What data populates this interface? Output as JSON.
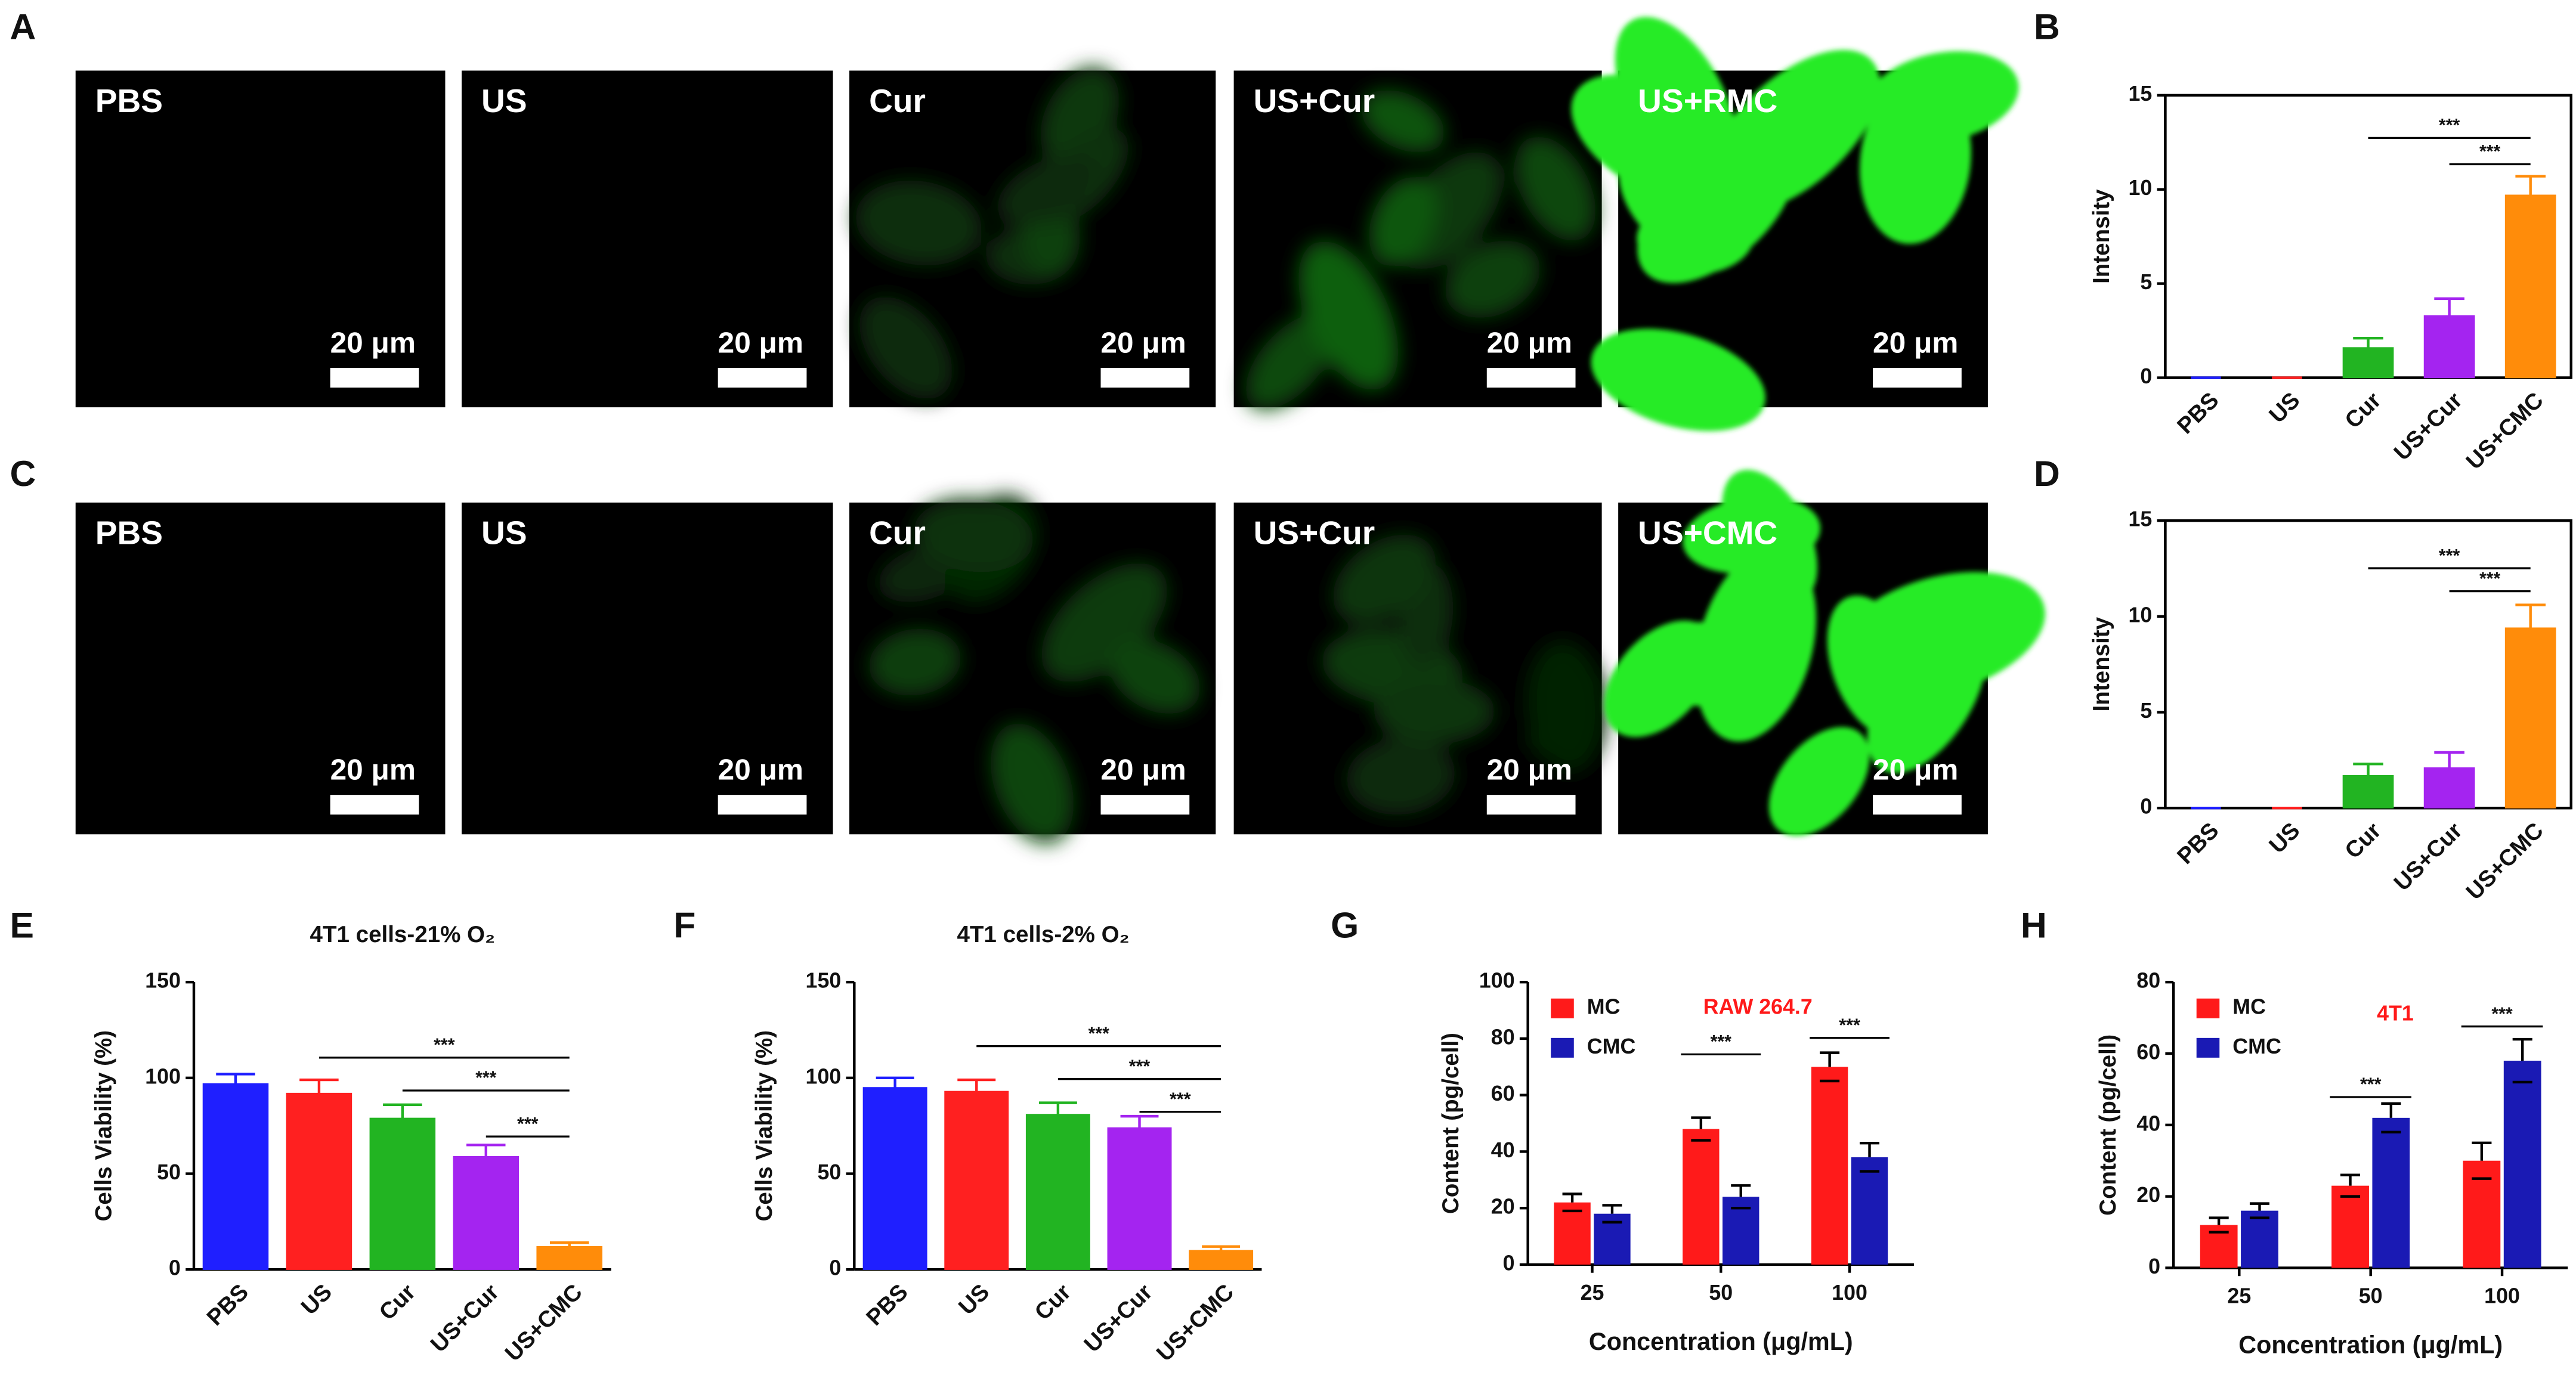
{
  "image_panels": [
    {
      "label": "A",
      "images": [
        "PBS",
        "US",
        "Cur",
        "US+Cur",
        "US+RMC"
      ],
      "scale_bar": "20 μm"
    },
    {
      "label": "C",
      "images": [
        "PBS",
        "US",
        "Cur",
        "US+Cur",
        "US+CMC"
      ],
      "scale_bar": "20 μm"
    }
  ],
  "chart_data": [
    {
      "type": "bar",
      "panel": "B",
      "y_label": "Intensity",
      "categories": [
        "PBS",
        "US",
        "Cur",
        "US+Cur",
        "US+CMC"
      ],
      "values": [
        0,
        0,
        1.6,
        3.3,
        9.7
      ],
      "errors": [
        0,
        0,
        0.5,
        0.9,
        1.0
      ],
      "colors": [
        "#1f1fff",
        "#ff2020",
        "#22b422",
        "#a424f0",
        "#ff8c0a"
      ],
      "ylim": [
        0,
        15
      ],
      "yticks": [
        0,
        5,
        10,
        15
      ],
      "significance": [
        "***",
        "***"
      ]
    },
    {
      "type": "bar",
      "panel": "D",
      "y_label": "Intensity",
      "categories": [
        "PBS",
        "US",
        "Cur",
        "US+Cur",
        "US+CMC"
      ],
      "values": [
        0,
        0,
        1.7,
        2.1,
        9.4
      ],
      "errors": [
        0,
        0,
        0.6,
        0.8,
        1.2
      ],
      "colors": [
        "#1f1fff",
        "#ff2020",
        "#22b422",
        "#a424f0",
        "#ff8c0a"
      ],
      "ylim": [
        0,
        15
      ],
      "yticks": [
        0,
        5,
        10,
        15
      ],
      "significance": [
        "***",
        "***"
      ]
    },
    {
      "type": "bar",
      "panel": "E",
      "title": "4T1 cells-21% O₂",
      "y_label": "Cells Viability (%)",
      "categories": [
        "PBS",
        "US",
        "Cur",
        "US+Cur",
        "US+CMC"
      ],
      "values": [
        97,
        92,
        79,
        59,
        12
      ],
      "errors": [
        5,
        7,
        7,
        6,
        2
      ],
      "colors": [
        "#1f1fff",
        "#ff2020",
        "#22b422",
        "#a424f0",
        "#ff8c0a"
      ],
      "ylim": [
        0,
        150
      ],
      "yticks": [
        0,
        50,
        100,
        150
      ],
      "significance": [
        "***",
        "***",
        "***"
      ]
    },
    {
      "type": "bar",
      "panel": "F",
      "title": "4T1 cells-2% O₂",
      "y_label": "Cells Viability (%)",
      "categories": [
        "PBS",
        "US",
        "Cur",
        "US+Cur",
        "US+CMC"
      ],
      "values": [
        95,
        93,
        81,
        74,
        10
      ],
      "errors": [
        5,
        6,
        6,
        6,
        2
      ],
      "colors": [
        "#1f1fff",
        "#ff2020",
        "#22b422",
        "#a424f0",
        "#ff8c0a"
      ],
      "ylim": [
        0,
        150
      ],
      "yticks": [
        0,
        50,
        100,
        150
      ],
      "significance": [
        "***",
        "***",
        "***"
      ]
    },
    {
      "type": "bar",
      "panel": "G",
      "annotation": "RAW 264.7",
      "x_label": "Concentration (μg/mL)",
      "y_label": "Content (pg/cell)",
      "categories": [
        "25",
        "50",
        "100"
      ],
      "error_color": "#000000",
      "legend": "upper left",
      "series": [
        {
          "name": "MC",
          "color": "#ff1a1a",
          "values": [
            22,
            48,
            70
          ],
          "errors": [
            3,
            4,
            5
          ]
        },
        {
          "name": "CMC",
          "color": "#1a1ab4",
          "values": [
            18,
            24,
            38
          ],
          "errors": [
            3,
            4,
            5
          ]
        }
      ],
      "ylim": [
        0,
        100
      ],
      "yticks": [
        0,
        20,
        40,
        60,
        80,
        100
      ],
      "significance": [
        "***",
        "***"
      ]
    },
    {
      "type": "bar",
      "panel": "H",
      "annotation": "4T1",
      "x_label": "Concentration (μg/mL)",
      "y_label": "Content (pg/cell)",
      "categories": [
        "25",
        "50",
        "100"
      ],
      "error_color": "#000000",
      "legend": "upper left",
      "series": [
        {
          "name": "MC",
          "color": "#ff1a1a",
          "values": [
            12,
            23,
            30
          ],
          "errors": [
            2,
            3,
            5
          ]
        },
        {
          "name": "CMC",
          "color": "#1a1ab4",
          "values": [
            16,
            42,
            58
          ],
          "errors": [
            2,
            4,
            6
          ]
        }
      ],
      "ylim": [
        0,
        80
      ],
      "yticks": [
        0,
        20,
        40,
        60,
        80
      ],
      "significance": [
        "***",
        "***"
      ]
    }
  ]
}
